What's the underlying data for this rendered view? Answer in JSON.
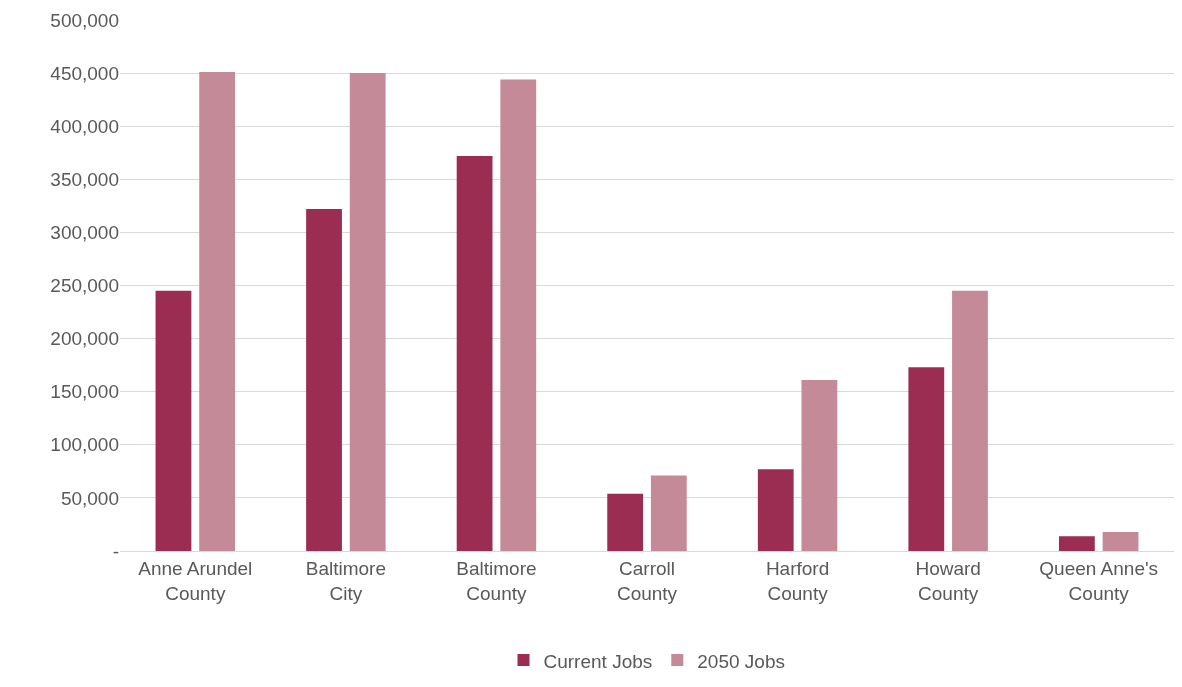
{
  "chart_data": {
    "type": "bar",
    "categories": [
      "Anne Arundel County",
      "Baltimore City",
      "Baltimore County",
      "Carroll County",
      "Harford County",
      "Howard County",
      "Queen Anne's County"
    ],
    "series": [
      {
        "name": "Current Jobs",
        "color": "#9b2d52",
        "values": [
          245000,
          322000,
          372000,
          54000,
          77000,
          173000,
          14000
        ]
      },
      {
        "name": "2050 Jobs",
        "color": "#c48a97",
        "values": [
          451000,
          450000,
          444000,
          71000,
          161000,
          245000,
          18000
        ]
      }
    ],
    "ylim": [
      0,
      500000
    ],
    "yticks": [
      {
        "value": 0,
        "label": "-"
      },
      {
        "value": 50000,
        "label": "50,000"
      },
      {
        "value": 100000,
        "label": "100,000"
      },
      {
        "value": 150000,
        "label": "150,000"
      },
      {
        "value": 200000,
        "label": "200,000"
      },
      {
        "value": 250000,
        "label": "250,000"
      },
      {
        "value": 300000,
        "label": "300,000"
      },
      {
        "value": 350000,
        "label": "350,000"
      },
      {
        "value": 400000,
        "label": "400,000"
      },
      {
        "value": 450000,
        "label": "450,000"
      },
      {
        "value": 500000,
        "label": "500,000"
      }
    ],
    "grid": "y",
    "legend": "bottom"
  }
}
